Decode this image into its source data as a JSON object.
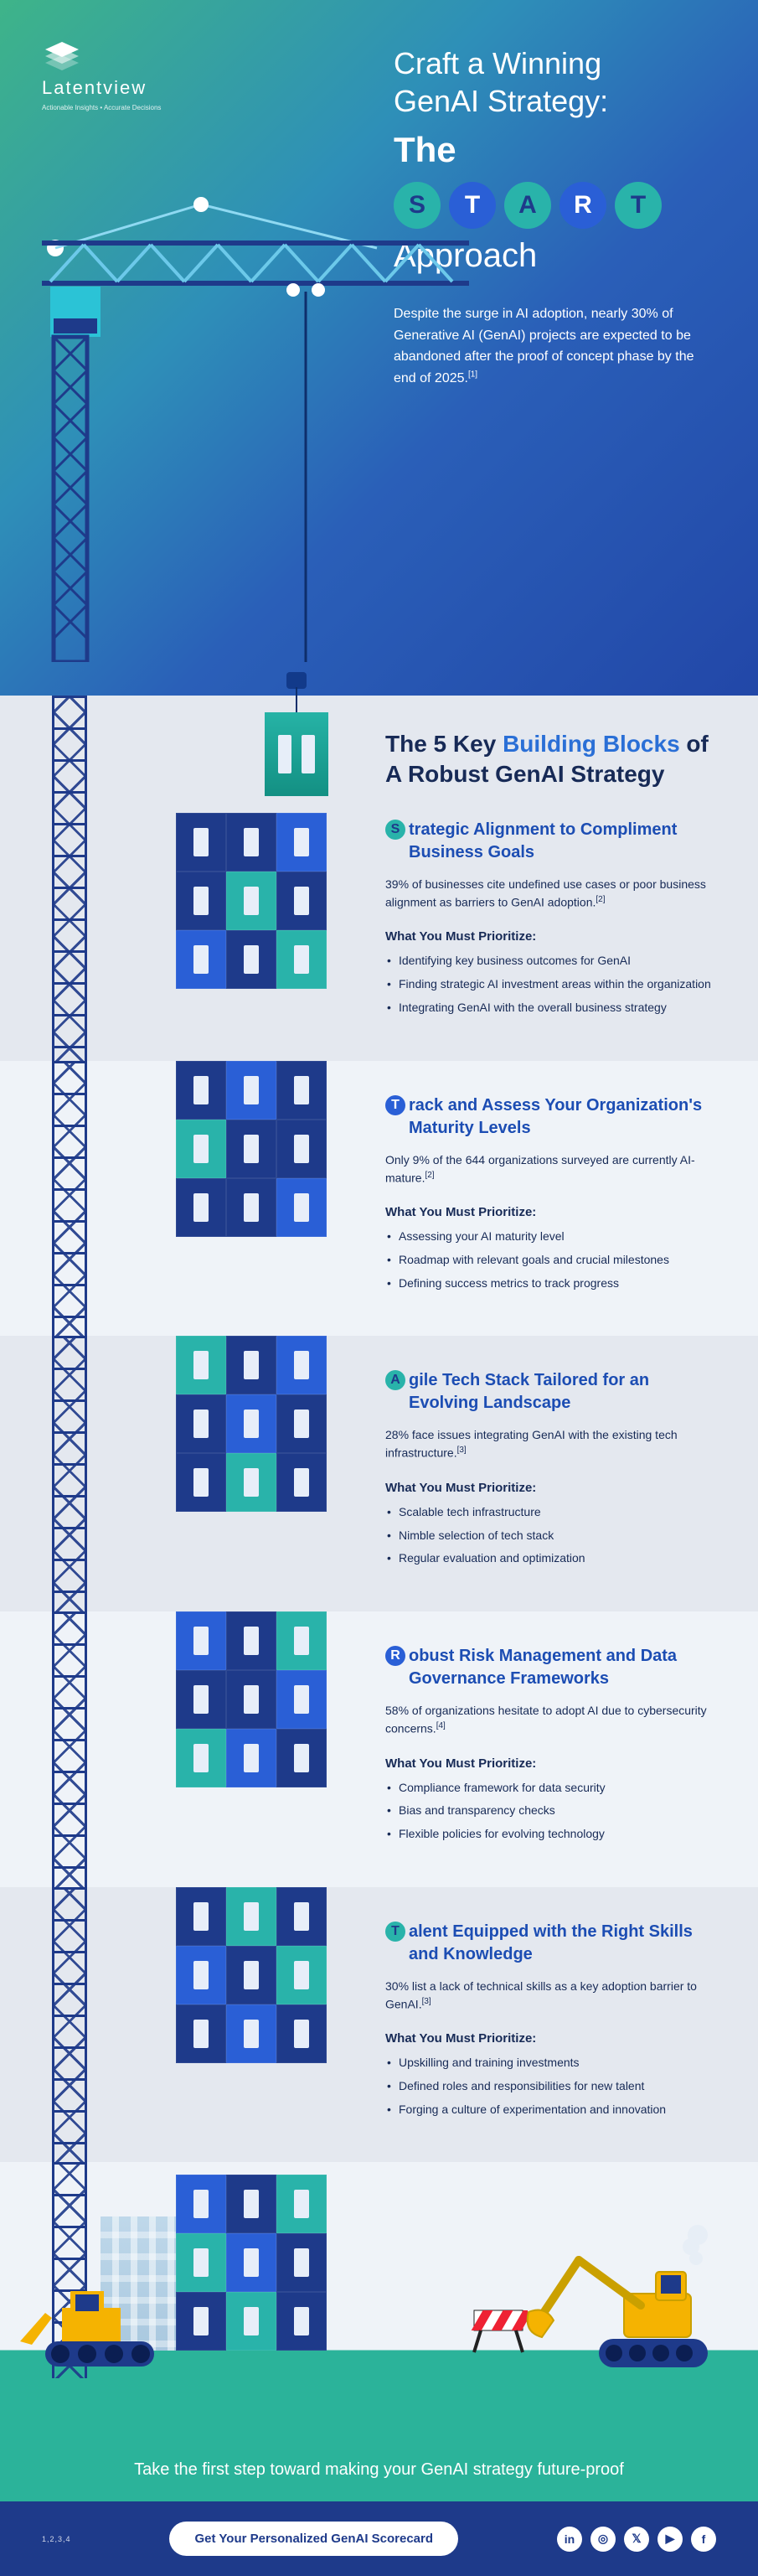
{
  "brand": {
    "name": "Latentview",
    "tagline": "Actionable Insights • Accurate Decisions"
  },
  "hero": {
    "title_line1": "Craft a Winning",
    "title_line2": "GenAI Strategy:",
    "the": "The",
    "approach": "Approach",
    "letters": [
      "S",
      "T",
      "A",
      "R",
      "T"
    ],
    "letter_colors": [
      "#29b3aa",
      "#2a5fd6",
      "#29b3aa",
      "#2a5fd6",
      "#29b3aa"
    ],
    "letter_text_colors": [
      "#1e3a8a",
      "#ffffff",
      "#1e3a8a",
      "#ffffff",
      "#1e3a8a"
    ],
    "body": "Despite the surge in AI adoption, nearly 30% of Generative AI (GenAI) projects are expected to be abandoned after the proof of concept phase by the end of 2025.",
    "body_ref": "[1]"
  },
  "section_heading": {
    "pre": "The 5 Key ",
    "accent": "Building Blocks",
    "post": " of A Robust GenAI Strategy"
  },
  "prioritize_label": "What You Must Prioritize:",
  "blocks": [
    {
      "letter": "S",
      "badge_bg": "#29b3aa",
      "badge_fg": "#1e3a8a",
      "title_rest": "trategic Alignment to Compliment Business Goals",
      "stat": "39% of businesses cite undefined use cases or poor business alignment as barriers to GenAI adoption.",
      "ref": "[2]",
      "items": [
        "Identifying key business outcomes for GenAI",
        "Finding strategic AI investment areas within the organization",
        "Integrating GenAI with the overall business strategy"
      ]
    },
    {
      "letter": "T",
      "badge_bg": "#2a5fd6",
      "badge_fg": "#ffffff",
      "title_rest": "rack and Assess Your Organization's Maturity Levels",
      "stat": "Only 9% of the 644 organizations surveyed are currently AI-mature.",
      "ref": "[2]",
      "items": [
        "Assessing your AI maturity level",
        "Roadmap with relevant goals and crucial milestones",
        "Defining success metrics to track progress"
      ]
    },
    {
      "letter": "A",
      "badge_bg": "#29b3aa",
      "badge_fg": "#1e3a8a",
      "title_rest": "gile Tech Stack Tailored for an Evolving Landscape",
      "stat": "28% face issues integrating GenAI with the existing tech infrastructure.",
      "ref": "[3]",
      "items": [
        "Scalable tech infrastructure",
        "Nimble selection of tech stack",
        "Regular evaluation and optimization"
      ]
    },
    {
      "letter": "R",
      "badge_bg": "#2a5fd6",
      "badge_fg": "#ffffff",
      "title_rest": "obust Risk Management and Data Governance Frameworks",
      "stat": "58% of organizations hesitate to adopt AI due to cybersecurity concerns.",
      "ref": "[4]",
      "items": [
        "Compliance framework for data security",
        "Bias and transparency checks",
        "Flexible policies for evolving technology"
      ]
    },
    {
      "letter": "T",
      "badge_bg": "#29b3aa",
      "badge_fg": "#1e3a8a",
      "title_rest": "alent Equipped with the Right Skills and Knowledge",
      "stat": "30% list a lack of technical skills as a key adoption barrier to GenAI.",
      "ref": "[3]",
      "items": [
        "Upskilling and training investments",
        "Defined roles and responsibilities for new talent",
        "Forging a culture of experimentation and innovation"
      ]
    }
  ],
  "building_palette": {
    "navy": "#1e3a8a",
    "blue": "#2a5fd6",
    "teal": "#29b3aa",
    "window": "#e7eef9"
  },
  "cta": {
    "headline": "Take the first step toward making your GenAI strategy future-proof",
    "button": "Get Your Personalized GenAI Scorecard"
  },
  "refs_label": "1,2,3,4",
  "socials": [
    "in",
    "◎",
    "𝕏",
    "▶",
    "f"
  ],
  "colors": {
    "hero_grad_from": "#3eb489",
    "hero_grad_to": "#2247a8",
    "bg_a": "#e4e8ef",
    "bg_b": "#eff3f8",
    "heading": "#172a56",
    "accent": "#2a6fd6",
    "cta_bg": "#2bb39a",
    "bottom_bg": "#1e3a8a"
  }
}
